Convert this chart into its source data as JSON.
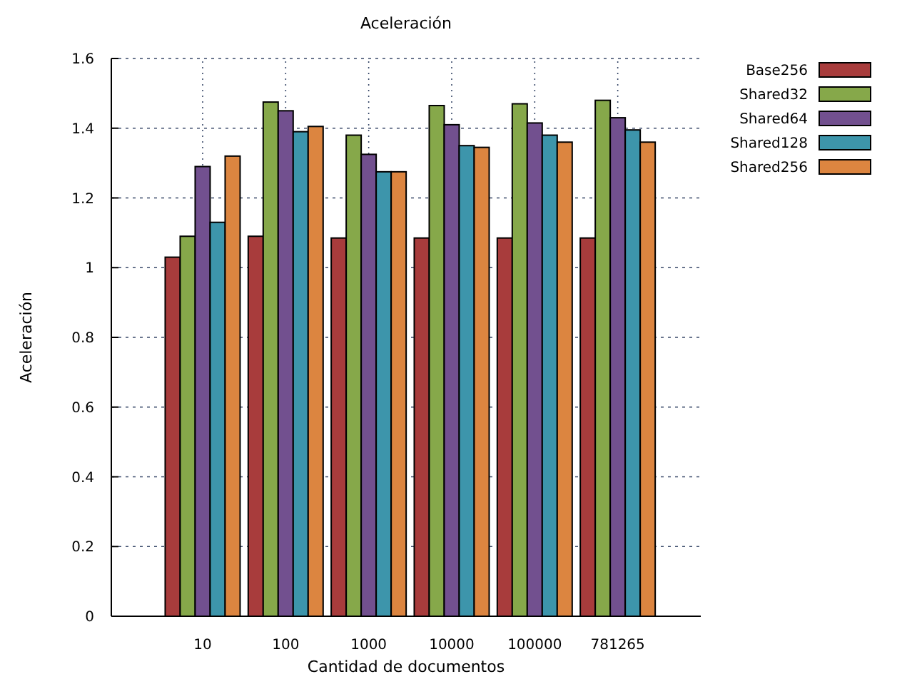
{
  "chart_data": {
    "type": "bar",
    "title": "Aceleración",
    "xlabel": "Cantidad de documentos",
    "ylabel": "Aceleración",
    "categories": [
      "10",
      "100",
      "1000",
      "10000",
      "100000",
      "781265"
    ],
    "series": [
      {
        "name": "Base256",
        "color": "#a83c3c",
        "values": [
          1.03,
          1.09,
          1.085,
          1.085,
          1.085,
          1.085
        ]
      },
      {
        "name": "Shared32",
        "color": "#86a84a",
        "values": [
          1.09,
          1.475,
          1.38,
          1.465,
          1.47,
          1.48
        ]
      },
      {
        "name": "Shared64",
        "color": "#72508f",
        "values": [
          1.29,
          1.45,
          1.325,
          1.41,
          1.415,
          1.43
        ]
      },
      {
        "name": "Shared128",
        "color": "#3d95ab",
        "values": [
          1.13,
          1.39,
          1.275,
          1.35,
          1.38,
          1.395
        ]
      },
      {
        "name": "Shared256",
        "color": "#dc8540",
        "values": [
          1.32,
          1.405,
          1.275,
          1.345,
          1.36,
          1.36
        ]
      }
    ],
    "ylim": [
      0,
      1.6
    ],
    "yticks": [
      0,
      0.2,
      0.4,
      0.6,
      0.8,
      1,
      1.2,
      1.4,
      1.6
    ],
    "grid": true,
    "legend": "top right"
  }
}
